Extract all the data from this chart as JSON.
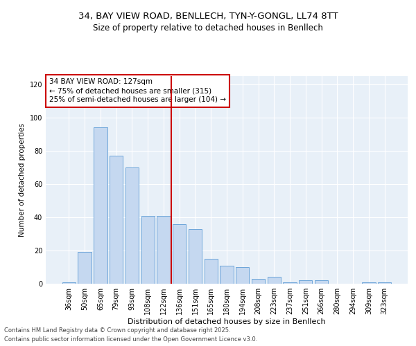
{
  "title1": "34, BAY VIEW ROAD, BENLLECH, TYN-Y-GONGL, LL74 8TT",
  "title2": "Size of property relative to detached houses in Benllech",
  "xlabel": "Distribution of detached houses by size in Benllech",
  "ylabel": "Number of detached properties",
  "categories": [
    "36sqm",
    "50sqm",
    "65sqm",
    "79sqm",
    "93sqm",
    "108sqm",
    "122sqm",
    "136sqm",
    "151sqm",
    "165sqm",
    "180sqm",
    "194sqm",
    "208sqm",
    "223sqm",
    "237sqm",
    "251sqm",
    "266sqm",
    "280sqm",
    "294sqm",
    "309sqm",
    "323sqm"
  ],
  "values": [
    1,
    19,
    94,
    77,
    70,
    41,
    41,
    36,
    33,
    15,
    11,
    10,
    3,
    4,
    1,
    2,
    2,
    0,
    0,
    1,
    1
  ],
  "bar_color": "#c5d8f0",
  "bar_edge_color": "#5b9bd5",
  "vline_x_index": 6,
  "vline_color": "#cc0000",
  "annotation_line1": "34 BAY VIEW ROAD: 127sqm",
  "annotation_line2": "← 75% of detached houses are smaller (315)",
  "annotation_line3": "25% of semi-detached houses are larger (104) →",
  "annotation_box_color": "#cc0000",
  "ylim": [
    0,
    125
  ],
  "yticks": [
    0,
    20,
    40,
    60,
    80,
    100,
    120
  ],
  "background_color": "#e8f0f8",
  "footer_line1": "Contains HM Land Registry data © Crown copyright and database right 2025.",
  "footer_line2": "Contains public sector information licensed under the Open Government Licence v3.0.",
  "title1_fontsize": 9.5,
  "title2_fontsize": 8.5,
  "xlabel_fontsize": 8,
  "ylabel_fontsize": 7.5,
  "tick_fontsize": 7,
  "annotation_fontsize": 7.5,
  "footer_fontsize": 6
}
